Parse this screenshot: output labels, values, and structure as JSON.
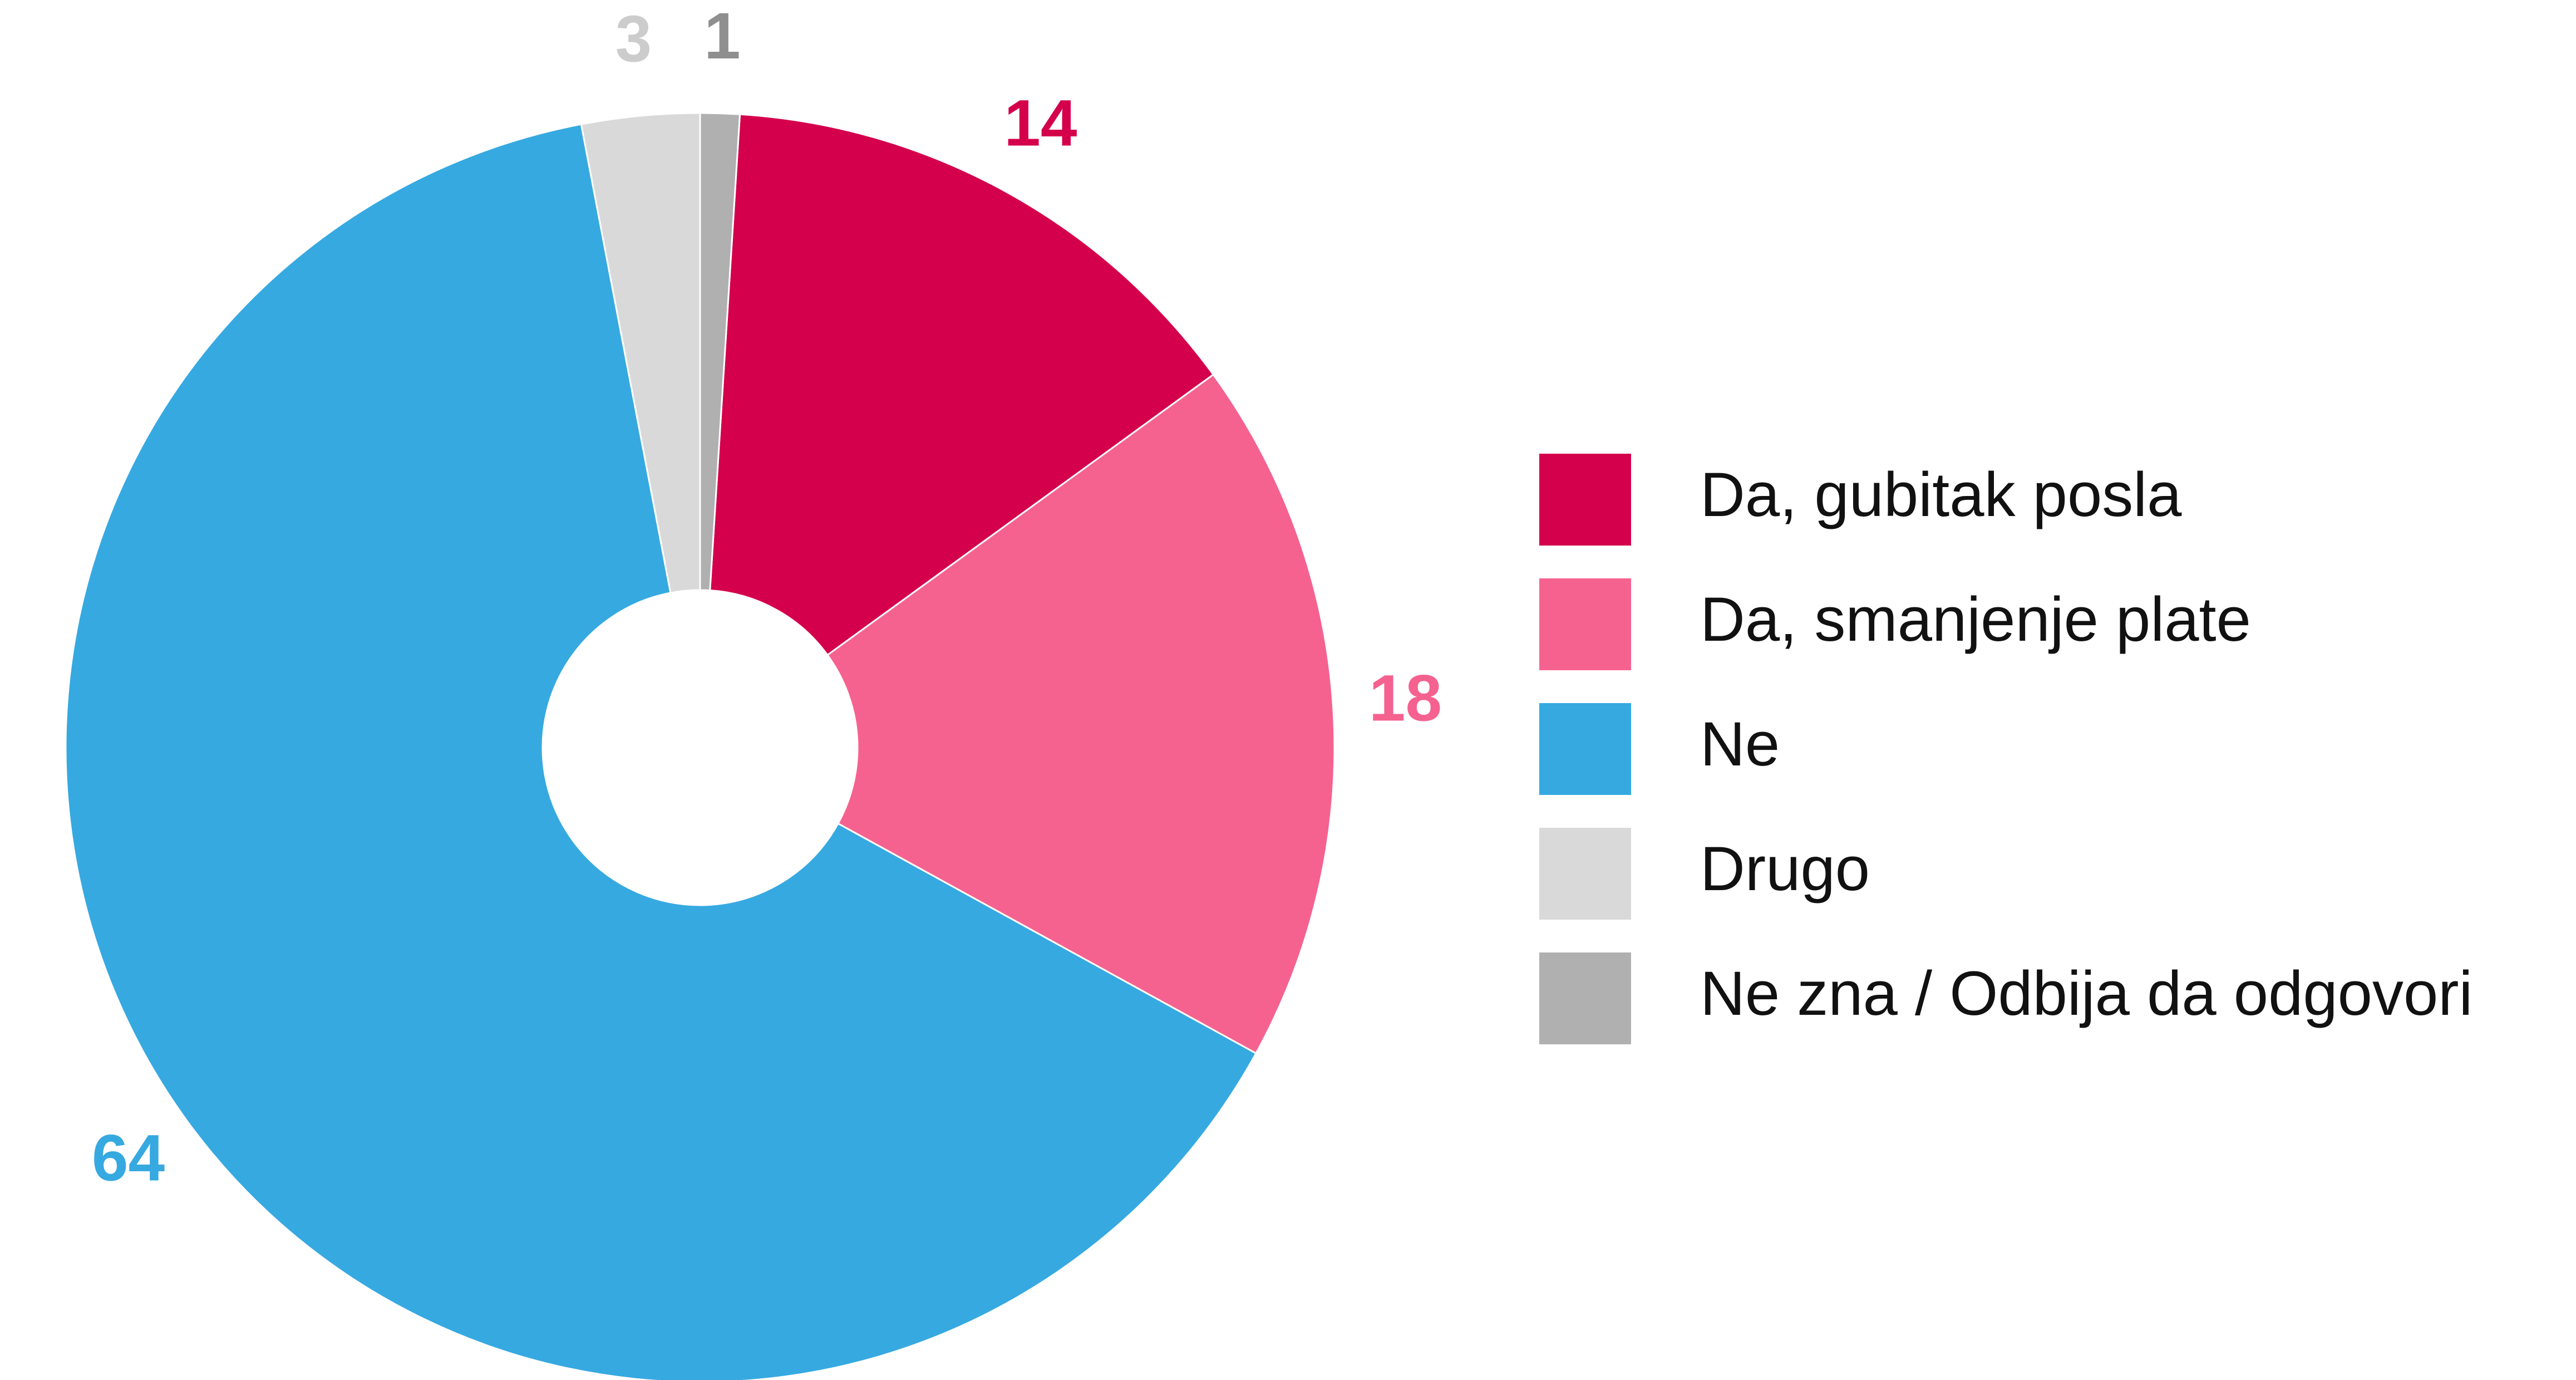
{
  "chart_data": {
    "type": "donut",
    "categories": [
      "Da, gubitak posla",
      "Da, smanjenje plate",
      "Ne",
      "Drugo",
      "Ne zna / Odbija da odgovori"
    ],
    "values": [
      14,
      18,
      64,
      3,
      1
    ],
    "colors": [
      "#d4004c",
      "#f5628f",
      "#36a9e1",
      "#d9d9d9",
      "#b0b0b0"
    ],
    "label_colors": [
      "#d4004c",
      "#f5628f",
      "#36a9e1",
      "#cccccc",
      "#8f8f8f"
    ],
    "legend": "right"
  }
}
